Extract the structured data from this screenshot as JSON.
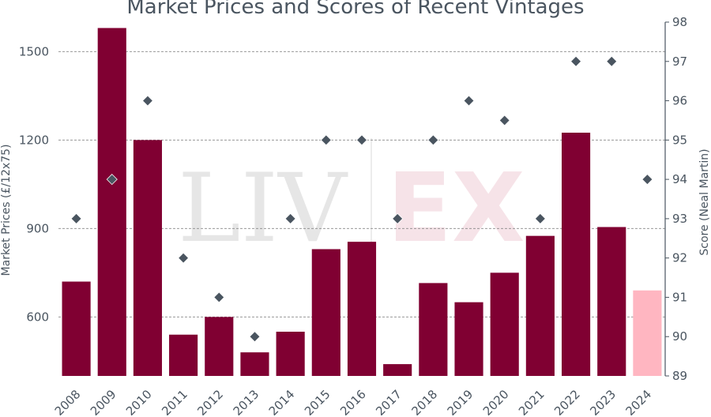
{
  "chart_data": {
    "type": "bar",
    "title": "Market Prices and Scores of Recent Vintages",
    "categories": [
      "2008",
      "2009",
      "2010",
      "2011",
      "2012",
      "2013",
      "2014",
      "2015",
      "2016",
      "2017",
      "2018",
      "2019",
      "2020",
      "2021",
      "2022",
      "2023",
      "2024"
    ],
    "series": [
      {
        "type": "bar",
        "axis": "left",
        "values": [
          720,
          1580,
          1200,
          540,
          600,
          480,
          550,
          830,
          855,
          440,
          715,
          650,
          750,
          875,
          1225,
          905,
          690
        ],
        "colors": [
          "#800032",
          "#800032",
          "#800032",
          "#800032",
          "#800032",
          "#800032",
          "#800032",
          "#800032",
          "#800032",
          "#800032",
          "#800032",
          "#800032",
          "#800032",
          "#800032",
          "#800032",
          "#800032",
          "#ffb6c1"
        ]
      },
      {
        "type": "scatter",
        "axis": "right",
        "marker": "diamond",
        "color": "#4a5560",
        "values": [
          93,
          94,
          96,
          92,
          91,
          90,
          93,
          95,
          95,
          93,
          95,
          96,
          95.5,
          93,
          97,
          97,
          94
        ]
      }
    ],
    "ylabel": "Market Prices (£/12x75)",
    "y2label": "Score (Neal Martin)",
    "ylim": [
      400,
      1600
    ],
    "yticks": [
      600,
      900,
      1200,
      1500
    ],
    "y2lim": [
      89,
      98
    ],
    "y2ticks": [
      89,
      90,
      91,
      92,
      93,
      94,
      95,
      96,
      97,
      98
    ],
    "grid": "horizontal dashed at left-axis ticks",
    "watermark": {
      "left": "LIV",
      "right": "EX"
    }
  }
}
